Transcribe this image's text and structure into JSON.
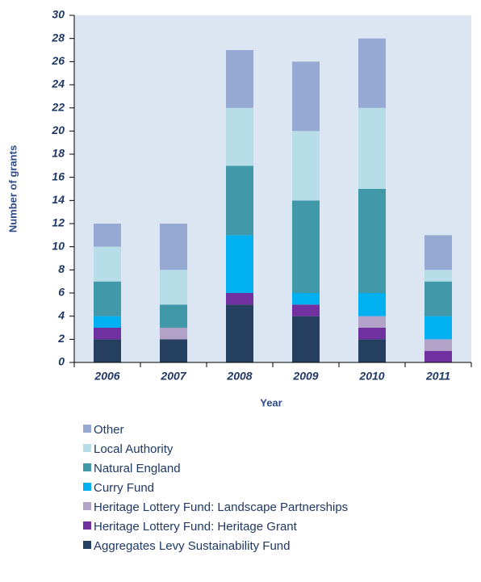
{
  "chart_data": {
    "type": "stacked_bar",
    "categories": [
      "2006",
      "2007",
      "2008",
      "2009",
      "2010",
      "2011"
    ],
    "series": [
      {
        "name": "Aggregates Levy Sustainability Fund",
        "color": "#243f60",
        "values": [
          2,
          2,
          5,
          4,
          2,
          0
        ]
      },
      {
        "name": "Heritage Lottery Fund: Heritage Grant",
        "color": "#7030a0",
        "values": [
          1,
          0,
          1,
          1,
          1,
          1
        ]
      },
      {
        "name": "Heritage Lottery Fund: Landscape Partnerships",
        "color": "#b3a2c7",
        "values": [
          0,
          1,
          0,
          0,
          1,
          1
        ]
      },
      {
        "name": "Curry Fund",
        "color": "#00b0f0",
        "values": [
          1,
          0,
          5,
          1,
          2,
          2
        ]
      },
      {
        "name": "Natural England",
        "color": "#4198a8",
        "values": [
          3,
          2,
          6,
          8,
          9,
          3
        ]
      },
      {
        "name": "Local Authority",
        "color": "#b7dde8",
        "values": [
          3,
          3,
          5,
          6,
          7,
          1
        ]
      },
      {
        "name": "Other",
        "color": "#95a9d2",
        "values": [
          2,
          4,
          5,
          6,
          6,
          3
        ]
      }
    ],
    "x_label": "Year",
    "y_label": "Number of grants",
    "ylim": [
      0,
      30
    ],
    "yticks": [
      0,
      2,
      4,
      6,
      8,
      10,
      12,
      14,
      16,
      18,
      20,
      22,
      24,
      26,
      28,
      30
    ]
  }
}
